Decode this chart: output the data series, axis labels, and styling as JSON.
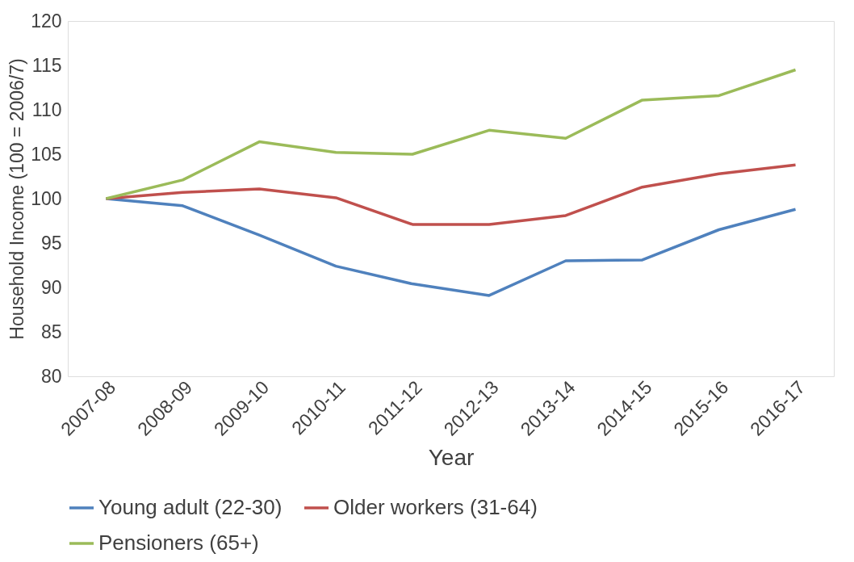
{
  "chart_data": {
    "type": "line",
    "xlabel": "Year",
    "ylabel": "Household Income (100 = 2006/7)",
    "categories": [
      "2007-08",
      "2008-09",
      "2009-10",
      "2010-11",
      "2011-12",
      "2012-13",
      "2013-14",
      "2014-15",
      "2015-16",
      "2016-17"
    ],
    "series": [
      {
        "name": "Young adult (22-30)",
        "color": "#4f81bd",
        "values": [
          100,
          99.2,
          95.9,
          92.4,
          90.4,
          89.1,
          93.0,
          93.1,
          96.5,
          98.8
        ]
      },
      {
        "name": "Older workers (31-64)",
        "color": "#c0504d",
        "values": [
          100,
          100.7,
          101.1,
          100.1,
          97.1,
          97.1,
          98.1,
          101.3,
          102.8,
          103.8
        ]
      },
      {
        "name": "Pensioners (65+)",
        "color": "#9bbb59",
        "values": [
          100,
          102.1,
          106.4,
          105.2,
          105.0,
          107.7,
          106.8,
          111.1,
          111.6,
          114.5
        ]
      }
    ],
    "ylim": [
      80,
      120
    ],
    "yticks": [
      80,
      85,
      90,
      95,
      100,
      105,
      110,
      115,
      120
    ],
    "grid": false,
    "legend": "bottom",
    "marker": "none",
    "line_style": "solid"
  }
}
